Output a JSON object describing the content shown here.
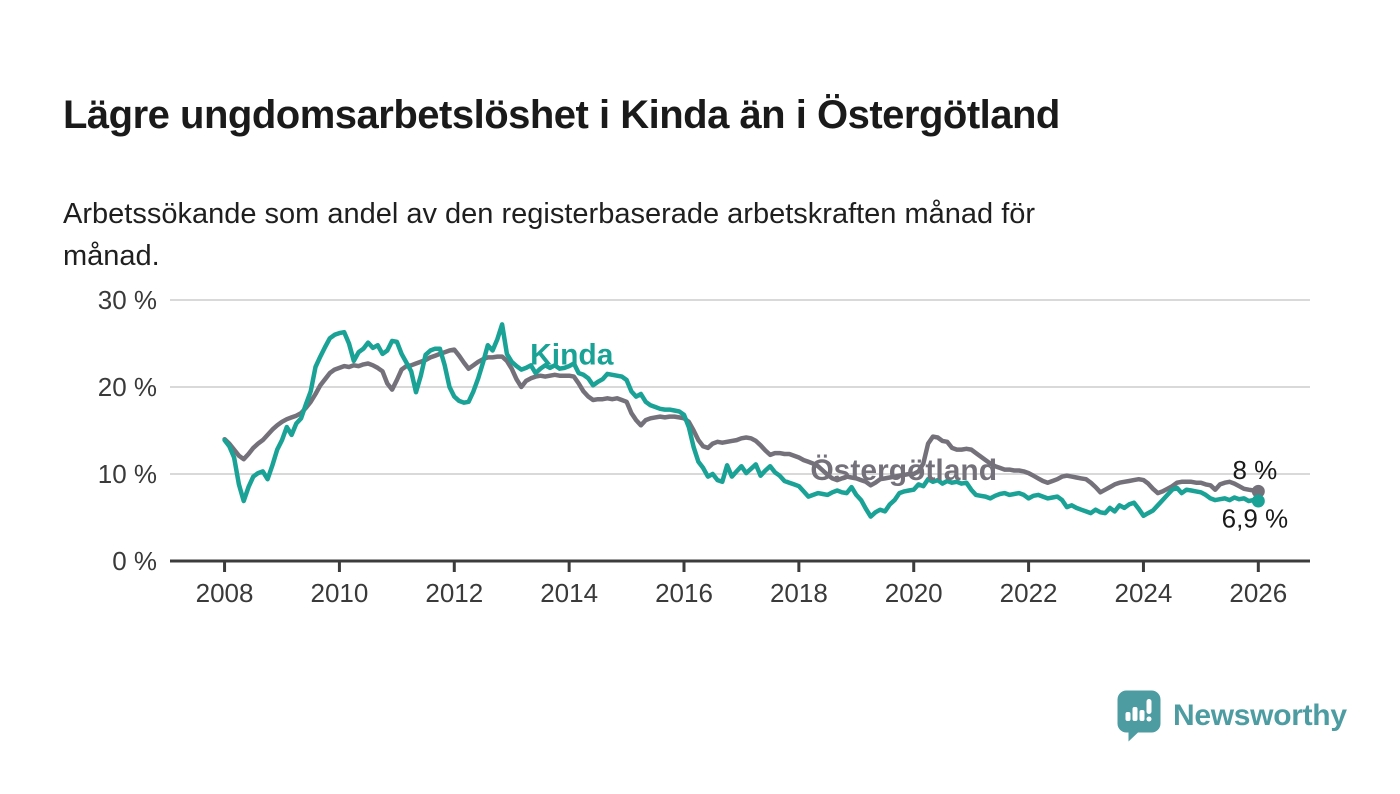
{
  "header": {
    "title": "Lägre ungdomsarbetslöshet i Kinda än i Östergötland",
    "subtitle": "Arbetssökande som andel av den registerbaserade arbetskraften månad för\nmånad."
  },
  "branding": {
    "logo_text": "Newsworthy",
    "logo_color": "#4d9ca2",
    "logo_icon": "bar-chart-speech-bubble"
  },
  "chart_data": {
    "type": "line",
    "unit": "%",
    "frequency": "monthly",
    "start_year": 2008,
    "grid": true,
    "legend": "inline-series-labels",
    "colors": {
      "gridline": "#d9d9d9",
      "axis_line": "#3c3c3c",
      "axis_text": "#3a3a3a",
      "annotation_text": "#1a1a1a"
    },
    "x_axis": {
      "min": 2007.05,
      "max": 2026.9,
      "ticks": [
        2008,
        2010,
        2012,
        2014,
        2016,
        2018,
        2020,
        2022,
        2024,
        2026
      ]
    },
    "y_axis": {
      "min": 0,
      "max": 30,
      "ticks": [
        {
          "v": 30,
          "label": "30 %"
        },
        {
          "v": 20,
          "label": "20 %"
        },
        {
          "v": 10,
          "label": "10 %"
        },
        {
          "v": 0,
          "label": "0 %"
        }
      ]
    },
    "series": [
      {
        "name": "Kinda",
        "color": "#1aa296",
        "label_pos": {
          "x": 2013.32,
          "y": 22.6
        },
        "end_dot": true,
        "values": [
          13.9,
          13.2,
          11.9,
          8.8,
          6.9,
          8.5,
          9.7,
          10.1,
          10.3,
          9.4,
          11.0,
          12.8,
          13.9,
          15.4,
          14.5,
          15.8,
          16.4,
          18.0,
          19.5,
          22.3,
          23.5,
          24.6,
          25.6,
          26.0,
          26.2,
          26.3,
          25.0,
          23.0,
          24.0,
          24.4,
          25.1,
          24.5,
          24.8,
          23.8,
          24.2,
          25.3,
          25.2,
          23.8,
          22.8,
          21.8,
          19.4,
          21.3,
          23.7,
          24.2,
          24.4,
          24.4,
          22.5,
          20.0,
          18.9,
          18.4,
          18.2,
          18.3,
          19.5,
          21.0,
          22.8,
          24.8,
          24.2,
          25.5,
          27.2,
          23.8,
          22.9,
          22.4,
          22.0,
          22.2,
          22.5,
          21.6,
          22.1,
          22.5,
          22.2,
          22.5,
          22.1,
          22.2,
          22.4,
          22.7,
          21.6,
          21.4,
          21.0,
          20.2,
          20.6,
          20.9,
          21.5,
          21.4,
          21.3,
          21.2,
          20.8,
          19.5,
          18.9,
          19.2,
          18.3,
          17.9,
          17.7,
          17.5,
          17.4,
          17.4,
          17.3,
          17.2,
          16.8,
          15.4,
          13.1,
          11.4,
          10.7,
          9.7,
          10.0,
          9.3,
          9.1,
          11.0,
          9.7,
          10.3,
          10.9,
          10.1,
          10.6,
          11.1,
          9.8,
          10.4,
          10.9,
          10.2,
          9.8,
          9.2,
          9.0,
          8.8,
          8.6,
          8.0,
          7.4,
          7.6,
          7.8,
          7.7,
          7.6,
          7.9,
          8.1,
          7.9,
          7.8,
          8.5,
          7.6,
          7.0,
          6.0,
          5.1,
          5.6,
          5.9,
          5.7,
          6.5,
          7.0,
          7.8,
          8.0,
          8.1,
          8.2,
          8.8,
          8.6,
          9.4,
          9.1,
          9.3,
          8.9,
          9.2,
          9.0,
          9.1,
          8.9,
          9.0,
          8.2,
          7.6,
          7.5,
          7.4,
          7.2,
          7.5,
          7.7,
          7.8,
          7.6,
          7.7,
          7.8,
          7.6,
          7.2,
          7.5,
          7.6,
          7.4,
          7.2,
          7.3,
          7.4,
          7.0,
          6.2,
          6.4,
          6.1,
          5.9,
          5.7,
          5.5,
          5.9,
          5.6,
          5.5,
          6.1,
          5.7,
          6.4,
          6.1,
          6.5,
          6.7,
          6.0,
          5.2,
          5.5,
          5.8,
          6.4,
          7.0,
          7.6,
          8.2,
          8.4,
          7.8,
          8.2,
          8.1,
          8.0,
          7.9,
          7.6,
          7.2,
          7.0,
          7.1,
          7.2,
          7.0,
          7.3,
          7.1,
          7.2,
          6.9,
          7.0,
          6.9
        ]
      },
      {
        "name": "Östergötland",
        "color": "#74717b",
        "label_pos": {
          "x": 2018.2,
          "y": 9.3
        },
        "end_dot": true,
        "values": [
          14.0,
          13.5,
          12.8,
          12.1,
          11.7,
          12.3,
          13.0,
          13.5,
          13.9,
          14.5,
          15.1,
          15.6,
          16.0,
          16.3,
          16.5,
          16.7,
          17.0,
          17.6,
          18.3,
          19.2,
          20.2,
          20.9,
          21.6,
          22.0,
          22.2,
          22.4,
          22.3,
          22.5,
          22.4,
          22.6,
          22.7,
          22.5,
          22.2,
          21.8,
          20.4,
          19.7,
          20.8,
          22.0,
          22.4,
          22.5,
          22.7,
          22.9,
          23.1,
          23.4,
          23.6,
          23.8,
          24.0,
          24.2,
          24.3,
          23.6,
          22.8,
          22.1,
          22.5,
          22.9,
          23.2,
          23.4,
          23.4,
          23.5,
          23.5,
          23.0,
          22.1,
          20.9,
          20.0,
          20.7,
          21.0,
          21.2,
          21.3,
          21.2,
          21.3,
          21.4,
          21.3,
          21.3,
          21.3,
          21.2,
          20.4,
          19.5,
          18.9,
          18.5,
          18.6,
          18.6,
          18.7,
          18.6,
          18.7,
          18.5,
          18.3,
          17.0,
          16.2,
          15.6,
          16.2,
          16.4,
          16.5,
          16.6,
          16.5,
          16.6,
          16.6,
          16.5,
          16.4,
          16.0,
          15.0,
          13.9,
          13.2,
          13.0,
          13.5,
          13.7,
          13.6,
          13.7,
          13.8,
          13.9,
          14.1,
          14.2,
          14.1,
          13.8,
          13.3,
          12.7,
          12.2,
          12.4,
          12.4,
          12.3,
          12.3,
          12.1,
          11.9,
          11.6,
          11.4,
          11.2,
          10.9,
          10.4,
          9.9,
          9.5,
          9.3,
          9.5,
          9.7,
          9.6,
          9.5,
          9.3,
          9.1,
          8.7,
          9.0,
          9.4,
          9.5,
          9.6,
          9.7,
          9.8,
          9.9,
          10.0,
          10.0,
          10.3,
          11.2,
          13.5,
          14.3,
          14.2,
          13.8,
          13.7,
          13.0,
          12.8,
          12.8,
          12.9,
          12.8,
          12.4,
          12.0,
          11.6,
          11.2,
          10.9,
          10.7,
          10.5,
          10.5,
          10.4,
          10.4,
          10.3,
          10.1,
          9.8,
          9.5,
          9.2,
          9.0,
          9.2,
          9.4,
          9.7,
          9.8,
          9.7,
          9.6,
          9.5,
          9.4,
          9.0,
          8.5,
          7.9,
          8.2,
          8.5,
          8.8,
          9.0,
          9.1,
          9.2,
          9.3,
          9.4,
          9.3,
          8.9,
          8.3,
          7.8,
          8.0,
          8.3,
          8.6,
          9.0,
          9.1,
          9.1,
          9.1,
          9.0,
          9.0,
          8.8,
          8.7,
          8.2,
          8.8,
          9.0,
          9.1,
          8.9,
          8.6,
          8.3,
          8.2,
          8.1,
          8.0
        ]
      }
    ],
    "end_labels": [
      {
        "text": "8 %",
        "x": 2026.33,
        "y": 9.4,
        "series": "Östergötland"
      },
      {
        "text": "6,9 %",
        "x": 2026.52,
        "y": 3.85,
        "series": "Kinda"
      }
    ]
  }
}
